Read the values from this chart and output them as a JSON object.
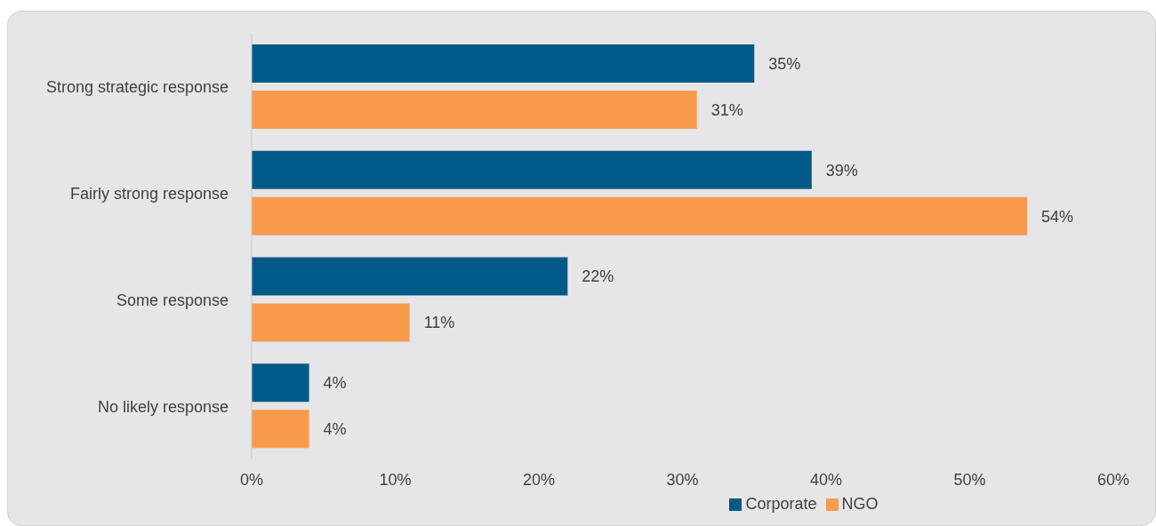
{
  "chart_data": {
    "type": "bar",
    "orientation": "horizontal",
    "categories": [
      "Strong strategic response",
      "Fairly strong response",
      "Some response",
      "No likely response"
    ],
    "series": [
      {
        "name": "Corporate",
        "color": "#005a87",
        "values": [
          35,
          39,
          22,
          4
        ],
        "value_labels": [
          "35%",
          "39%",
          "22%",
          "4%"
        ]
      },
      {
        "name": "NGO",
        "color": "#f79a4b",
        "values": [
          31,
          54,
          11,
          4
        ],
        "value_labels": [
          "31%",
          "54%",
          "11%",
          "4%"
        ]
      }
    ],
    "xlim": [
      0,
      60
    ],
    "xticks": [
      {
        "value": 0,
        "label": "0%"
      },
      {
        "value": 10,
        "label": "10%"
      },
      {
        "value": 20,
        "label": "20%"
      },
      {
        "value": 30,
        "label": "30%"
      },
      {
        "value": 40,
        "label": "40%"
      },
      {
        "value": 50,
        "label": "50%"
      },
      {
        "value": 60,
        "label": "60%"
      }
    ],
    "grid": false,
    "legend": "bottom"
  }
}
